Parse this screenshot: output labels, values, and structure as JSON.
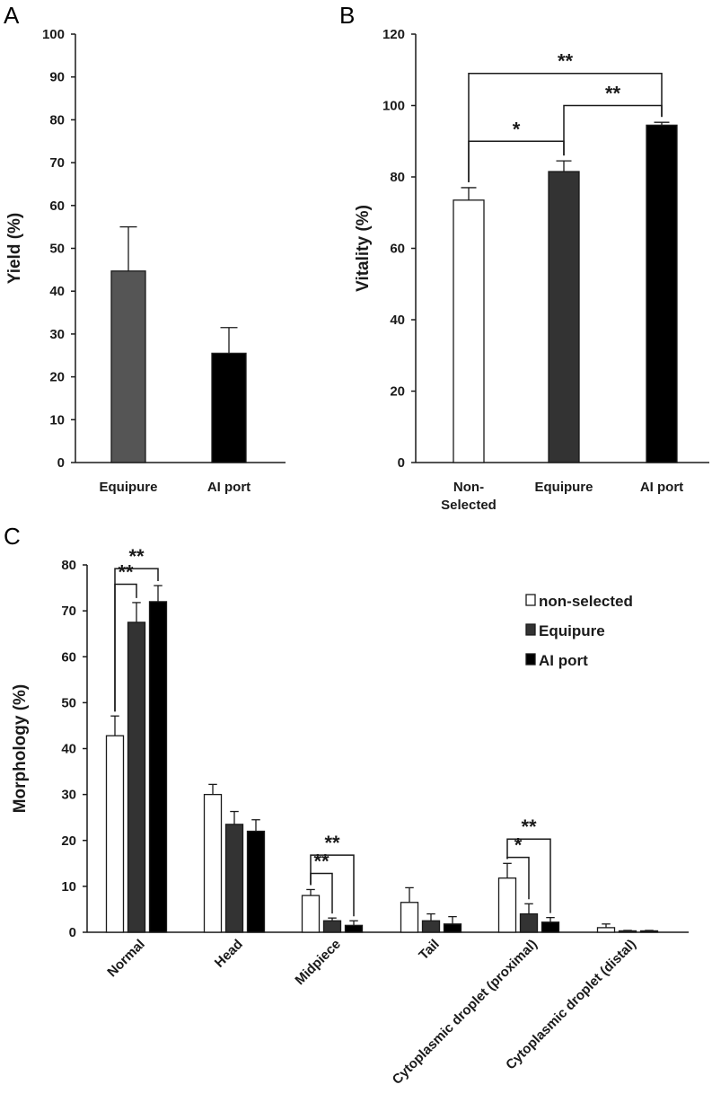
{
  "panels": {
    "a": "A",
    "b": "B",
    "c": "C"
  },
  "chart_data": [
    {
      "type": "bar",
      "panel": "A",
      "ylabel": "Yield (%)",
      "ylim": [
        0,
        100
      ],
      "yticks": [
        0,
        10,
        20,
        30,
        40,
        50,
        60,
        70,
        80,
        90,
        100
      ],
      "categories": [
        "Equipure",
        "AI port"
      ],
      "values": [
        44.7,
        25.5
      ],
      "errors": [
        10.3,
        6.0
      ],
      "colors": [
        "#555555",
        "#000000"
      ],
      "significance": []
    },
    {
      "type": "bar",
      "panel": "B",
      "ylabel": "Vitality (%)",
      "ylim": [
        0,
        120
      ],
      "yticks": [
        0,
        20,
        40,
        60,
        80,
        100,
        120
      ],
      "categories": [
        [
          "Non-",
          "Selected"
        ],
        [
          "Equipure"
        ],
        [
          "AI port"
        ]
      ],
      "values": [
        73.5,
        81.5,
        94.5
      ],
      "errors": [
        3.5,
        3.0,
        0.8
      ],
      "colors": [
        "#ffffff",
        "#333333",
        "#000000"
      ],
      "significance": [
        {
          "from": 0,
          "to": 1,
          "label": "*",
          "y": 90
        },
        {
          "from": 1,
          "to": 2,
          "label": "**",
          "y": 100
        },
        {
          "from": 0,
          "to": 2,
          "label": "**",
          "y": 109
        }
      ]
    },
    {
      "type": "bar",
      "panel": "C",
      "ylabel": "Morphology  (%)",
      "ylim": [
        0,
        80
      ],
      "yticks": [
        0,
        10,
        20,
        30,
        40,
        50,
        60,
        70,
        80
      ],
      "categories": [
        "Normal",
        "Head",
        "Midpiece",
        "Tail",
        "Cytoplasmic droplet (proximal)",
        "Cytoplasmic droplet (distal)"
      ],
      "series": [
        {
          "name": "non-selected",
          "color": "#ffffff",
          "values": [
            42.8,
            30.0,
            8.0,
            6.5,
            11.8,
            1.0
          ],
          "errors": [
            4.3,
            2.2,
            1.3,
            3.2,
            3.2,
            0.8
          ]
        },
        {
          "name": "Equipure",
          "color": "#333333",
          "values": [
            67.5,
            23.5,
            2.5,
            2.5,
            4.0,
            0.3
          ],
          "errors": [
            4.3,
            2.8,
            0.6,
            1.5,
            2.2,
            0.1
          ]
        },
        {
          "name": "AI port",
          "color": "#000000",
          "values": [
            72.0,
            22.0,
            1.5,
            1.8,
            2.2,
            0.3
          ],
          "errors": [
            3.5,
            2.5,
            1.0,
            1.6,
            1.0,
            0.1
          ]
        }
      ],
      "significance": [
        {
          "group": 0,
          "from": 0,
          "to": 1,
          "label": "**",
          "y": 75.8
        },
        {
          "group": 0,
          "from": 0,
          "to": 2,
          "label": "**",
          "y": 79.2
        },
        {
          "group": 2,
          "from": 0,
          "to": 1,
          "label": "**",
          "y": 12.8
        },
        {
          "group": 2,
          "from": 0,
          "to": 2,
          "label": "**",
          "y": 16.8
        },
        {
          "group": 4,
          "from": 0,
          "to": 1,
          "label": "*",
          "y": 16.3
        },
        {
          "group": 4,
          "from": 0,
          "to": 2,
          "label": "**",
          "y": 20.3
        }
      ]
    }
  ]
}
